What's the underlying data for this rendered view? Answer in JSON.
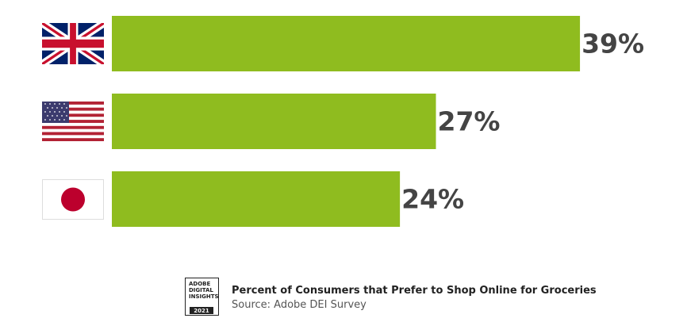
{
  "chart_data": {
    "type": "bar",
    "orientation": "horizontal",
    "categories": [
      null,
      null,
      null
    ],
    "values": [
      39,
      27,
      24
    ],
    "value_labels": [
      "39%",
      "27%",
      "24%"
    ],
    "color": "#8fbc1f",
    "title": "Percent of Consumers that Prefer to Shop Online for Groceries",
    "source": "Source: Adobe DEI Survey",
    "logo": {
      "lines": [
        "ADOBE",
        "DIGITAL",
        "INSIGHTS"
      ],
      "year": "2021"
    }
  }
}
